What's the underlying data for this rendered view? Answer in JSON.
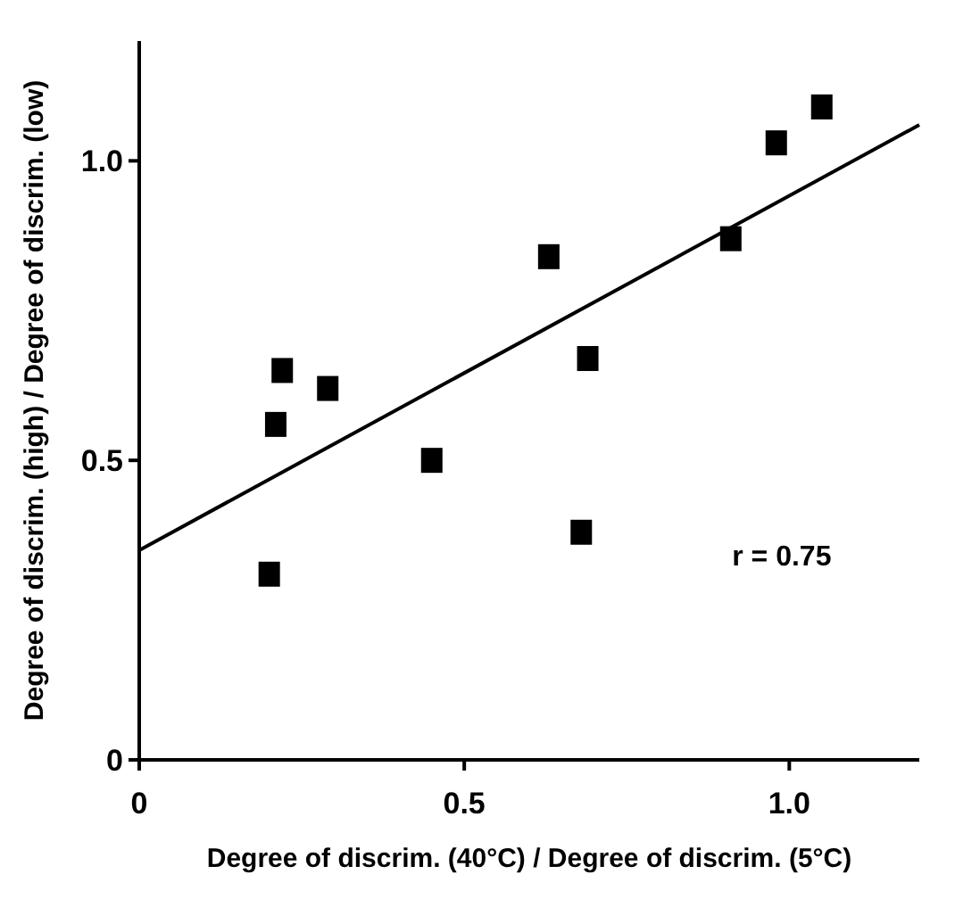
{
  "chart_data": {
    "type": "scatter",
    "xlabel": "Degree of discrim. (40°C) / Degree of discrim. (5°C)",
    "ylabel": "Degree of discrim. (high) / Degree of discrim. (low)",
    "xlim": [
      0,
      1.2
    ],
    "ylim": [
      0,
      1.2
    ],
    "xticks": [
      0,
      0.5,
      {
        "value": 1,
        "label": "1.0"
      }
    ],
    "yticks": [
      0,
      0.5,
      {
        "value": 1,
        "label": "1.0"
      }
    ],
    "grid": false,
    "annotations": [
      "r = 0.75"
    ],
    "series": [
      {
        "color": "#000000",
        "marker": "square",
        "x": [
          0.2,
          0.21,
          0.22,
          0.29,
          0.45,
          0.63,
          0.69,
          0.68,
          0.91,
          0.98,
          1.05
        ],
        "values": [
          0.31,
          0.56,
          0.65,
          0.62,
          0.5,
          0.84,
          0.67,
          0.38,
          0.87,
          1.03,
          1.09
        ]
      },
      {
        "type": "line",
        "color": "#000000",
        "x": [
          0,
          1.2
        ],
        "values": [
          0.35,
          1.06
        ],
        "marker": "none",
        "line_style": "solid"
      }
    ]
  }
}
